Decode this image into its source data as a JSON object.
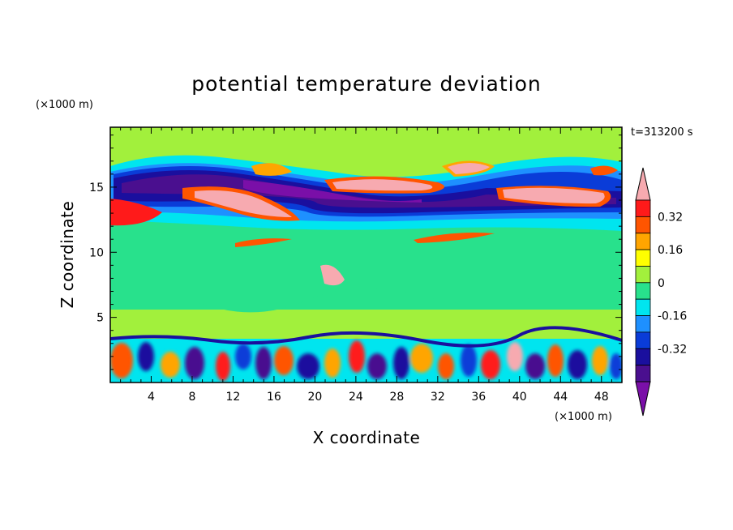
{
  "chart_data": {
    "type": "heatmap",
    "title": "potential temperature deviation",
    "xlabel": "X coordinate",
    "ylabel": "Z coordinate",
    "x_unit": "(×1000 m)",
    "y_unit": "(×1000 m)",
    "time_label": "t=313200 s",
    "xlim": [
      0,
      50
    ],
    "ylim": [
      0,
      19.6
    ],
    "x_ticks": [
      4,
      8,
      12,
      16,
      20,
      24,
      28,
      32,
      36,
      40,
      44,
      48
    ],
    "y_ticks": [
      5,
      10,
      15
    ],
    "colorbar": {
      "levels": [
        -0.4,
        -0.32,
        -0.24,
        -0.16,
        -0.08,
        0,
        0.08,
        0.16,
        0.24,
        0.32,
        0.4
      ],
      "colors": [
        "#7a0fa8",
        "#4a0f8f",
        "#1a0f9e",
        "#0a3cd8",
        "#1e90ff",
        "#00e5ef",
        "#28e18c",
        "#a2f03c",
        "#ffff00",
        "#ffa500",
        "#ff5500",
        "#ff1a1a",
        "#f7aab0"
      ],
      "tick_labels": [
        "-0.32",
        "-0.16",
        "0",
        "0.16",
        "0.32"
      ]
    }
  }
}
